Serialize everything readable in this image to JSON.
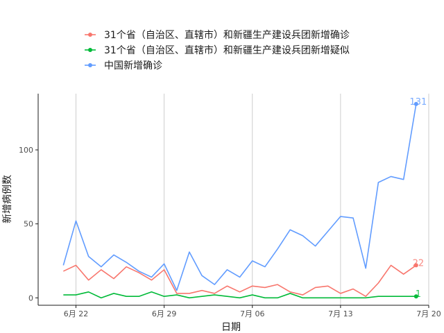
{
  "chart_data": {
    "type": "line",
    "title": "",
    "xlabel": "日期",
    "ylabel": "新增病例数",
    "xlim": [
      "2020-06-19",
      "2020-07-20"
    ],
    "ylim": [
      -5,
      138
    ],
    "x_ticks": [
      {
        "date": "2020-06-22",
        "label": "6月 22"
      },
      {
        "date": "2020-06-29",
        "label": "6月 29"
      },
      {
        "date": "2020-07-06",
        "label": "7月 06"
      },
      {
        "date": "2020-07-13",
        "label": "7月 13"
      },
      {
        "date": "2020-07-20",
        "label": "7月 20"
      }
    ],
    "y_ticks": [
      0,
      50,
      100
    ],
    "grid": "vertical-major",
    "legend_position": "top",
    "x": [
      "2020-06-21",
      "2020-06-22",
      "2020-06-23",
      "2020-06-24",
      "2020-06-25",
      "2020-06-26",
      "2020-06-27",
      "2020-06-28",
      "2020-06-29",
      "2020-06-30",
      "2020-07-01",
      "2020-07-02",
      "2020-07-03",
      "2020-07-04",
      "2020-07-05",
      "2020-07-06",
      "2020-07-07",
      "2020-07-08",
      "2020-07-09",
      "2020-07-10",
      "2020-07-11",
      "2020-07-12",
      "2020-07-13",
      "2020-07-14",
      "2020-07-15",
      "2020-07-16",
      "2020-07-17",
      "2020-07-18",
      "2020-07-19"
    ],
    "series": [
      {
        "name": "31个省（自治区、直辖市）和新疆生产建设兵团新增确诊",
        "color": "#F8766D",
        "values": [
          18,
          22,
          12,
          19,
          13,
          21,
          17,
          12,
          19,
          3,
          3,
          5,
          3,
          8,
          4,
          8,
          7,
          9,
          4,
          2,
          7,
          8,
          3,
          6,
          1,
          10,
          22,
          16,
          22
        ],
        "end_label": "22"
      },
      {
        "name": "31个省（自治区、直辖市）和新疆生产建设兵团新增疑似",
        "color": "#00BA38",
        "values": [
          2,
          2,
          4,
          0,
          3,
          1,
          1,
          4,
          1,
          2,
          0,
          1,
          2,
          1,
          0,
          2,
          0,
          0,
          3,
          0,
          0,
          0,
          0,
          0,
          0,
          1,
          1,
          1,
          1
        ],
        "end_label": "1"
      },
      {
        "name": "中国新增确诊",
        "color": "#619CFF",
        "values": [
          22,
          52,
          28,
          21,
          29,
          24,
          18,
          14,
          23,
          5,
          31,
          15,
          9,
          19,
          14,
          25,
          21,
          33,
          46,
          42,
          35,
          45,
          55,
          54,
          20,
          78,
          82,
          80,
          131
        ],
        "end_label": "131"
      }
    ]
  }
}
